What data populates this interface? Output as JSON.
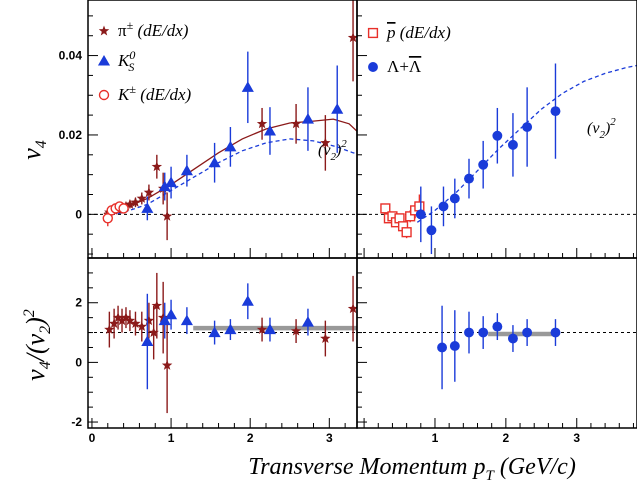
{
  "chart_data": {
    "type": "scatter",
    "x_axis": {
      "label": "Transverse Momentum p_T (GeV/c)",
      "label_main": "Transverse Momentum p",
      "label_sub": "T",
      "label_tail": " (GeV/c)",
      "left_range": [
        -0.05,
        3.35
      ],
      "right_range": [
        -0.1,
        3.85
      ],
      "ticks_left": [
        "0",
        "1",
        "2",
        "3"
      ],
      "ticks_right": [
        "1",
        "2",
        "3"
      ]
    },
    "panels": [
      {
        "id": "top-left",
        "ylabel": "v_4",
        "ylabel_main": "v",
        "ylabel_sub": "4",
        "ylim": [
          -0.011,
          0.054
        ],
        "yticks": [
          0,
          0.02,
          0.04
        ],
        "ytick_labels": [
          "0",
          "0.02",
          "0.04"
        ],
        "annotation": "(v2)2",
        "annotation_parts": [
          "(v",
          "2",
          ")",
          "2"
        ],
        "series": [
          {
            "name": "π± (dE/dx)",
            "marker": "star",
            "color": "#8b1a1a",
            "points": [
              [
                0.22,
                0.0005,
                0.0008
              ],
              [
                0.28,
                0.001,
                0.0008
              ],
              [
                0.33,
                0.0012,
                0.0008
              ],
              [
                0.38,
                0.0015,
                0.0009
              ],
              [
                0.43,
                0.002,
                0.0009
              ],
              [
                0.48,
                0.0025,
                0.001
              ],
              [
                0.55,
                0.003,
                0.0012
              ],
              [
                0.63,
                0.004,
                0.0015
              ],
              [
                0.72,
                0.0055,
                0.002
              ],
              [
                0.82,
                0.012,
                0.003
              ],
              [
                0.9,
                0.0065,
                0.004
              ],
              [
                0.95,
                -0.0005,
                0.006
              ],
              [
                2.15,
                0.0228,
                0.004
              ],
              [
                2.58,
                0.0228,
                0.005
              ],
              [
                2.95,
                0.018,
                0.007
              ],
              [
                3.3,
                0.0445,
                0.011
              ]
            ]
          },
          {
            "name": "K0S",
            "marker": "triangle",
            "color": "#1a3bd9",
            "points": [
              [
                0.7,
                0.0015,
                0.003
              ],
              [
                0.92,
                0.007,
                0.0035
              ],
              [
                1.0,
                0.008,
                0.004
              ],
              [
                1.2,
                0.011,
                0.004
              ],
              [
                1.55,
                0.013,
                0.005
              ],
              [
                1.75,
                0.017,
                0.005
              ],
              [
                1.97,
                0.032,
                0.009
              ],
              [
                2.25,
                0.021,
                0.006
              ],
              [
                2.73,
                0.024,
                0.008
              ],
              [
                3.1,
                0.0265,
                0.011
              ]
            ]
          },
          {
            "name": "K± (dE/dx)",
            "marker": "open-circle",
            "color": "#e8302a",
            "points": [
              [
                0.2,
                -0.001,
                0.002
              ],
              [
                0.25,
                0.001,
                0.001
              ],
              [
                0.3,
                0.0015,
                0.001
              ],
              [
                0.35,
                0.002,
                0.001
              ],
              [
                0.4,
                0.0015,
                0.0012
              ]
            ]
          }
        ],
        "curves": [
          {
            "name": "(v2)2 (π, K)",
            "color": "#8b1a1a",
            "style": "solid",
            "points": [
              [
                0.15,
                0.0002
              ],
              [
                0.4,
                0.0015
              ],
              [
                0.7,
                0.004
              ],
              [
                1.0,
                0.0075
              ],
              [
                1.3,
                0.0115
              ],
              [
                1.6,
                0.0155
              ],
              [
                1.9,
                0.019
              ],
              [
                2.2,
                0.0215
              ],
              [
                2.5,
                0.023
              ],
              [
                2.8,
                0.0235
              ],
              [
                3.05,
                0.024
              ],
              [
                3.25,
                0.0228
              ],
              [
                3.4,
                0.02
              ],
              [
                3.55,
                0.017
              ]
            ]
          },
          {
            "name": "(v2)2 (K0S)",
            "color": "#1a3bd9",
            "style": "dashed",
            "points": [
              [
                0.15,
                -0.0005
              ],
              [
                0.4,
                0.0005
              ],
              [
                0.7,
                0.0025
              ],
              [
                1.0,
                0.006
              ],
              [
                1.3,
                0.0095
              ],
              [
                1.6,
                0.013
              ],
              [
                1.9,
                0.016
              ],
              [
                2.2,
                0.018
              ],
              [
                2.5,
                0.019
              ],
              [
                2.8,
                0.0185
              ],
              [
                3.1,
                0.017
              ],
              [
                3.3,
                0.0155
              ],
              [
                3.5,
                0.0145
              ]
            ]
          }
        ]
      },
      {
        "id": "top-right",
        "ylim": [
          -0.011,
          0.054
        ],
        "yticks": [
          0,
          0.02,
          0.04
        ],
        "annotation": "(v2)2",
        "annotation_parts": [
          "(v",
          "2",
          ")",
          "2"
        ],
        "series": [
          {
            "name": "p̄ (dE/dx)",
            "marker": "open-square",
            "color": "#e8302a",
            "points": [
              [
                0.3,
                0.0015,
                0.001
              ],
              [
                0.35,
                -0.001,
                0.001
              ],
              [
                0.4,
                -0.0005,
                0.001
              ],
              [
                0.45,
                -0.002,
                0.0012
              ],
              [
                0.5,
                -0.001,
                0.0012
              ],
              [
                0.55,
                -0.003,
                0.0013
              ],
              [
                0.6,
                -0.0045,
                0.0015
              ],
              [
                0.65,
                -0.0005,
                0.0015
              ],
              [
                0.72,
                0.001,
                0.002
              ],
              [
                0.78,
                0.002,
                0.003
              ]
            ]
          },
          {
            "name": "Λ+Λ̄",
            "marker": "filled-circle",
            "color": "#1a3bd9",
            "points": [
              [
                0.8,
                0.0,
                0.007
              ],
              [
                0.95,
                -0.004,
                0.006
              ],
              [
                1.12,
                0.002,
                0.005
              ],
              [
                1.28,
                0.004,
                0.005
              ],
              [
                1.48,
                0.009,
                0.005
              ],
              [
                1.68,
                0.0125,
                0.006
              ],
              [
                1.88,
                0.0198,
                0.007
              ],
              [
                2.1,
                0.0175,
                0.008
              ],
              [
                2.3,
                0.022,
                0.01
              ],
              [
                2.7,
                0.026,
                0.012
              ]
            ]
          }
        ],
        "curves": [
          {
            "name": "(v2)2 (Λ+Λ̄)",
            "color": "#1a3bd9",
            "style": "dashed",
            "points": [
              [
                0.75,
                -0.002
              ],
              [
                1.0,
                0.001
              ],
              [
                1.3,
                0.0055
              ],
              [
                1.6,
                0.011
              ],
              [
                1.9,
                0.0165
              ],
              [
                2.2,
                0.0215
              ],
              [
                2.5,
                0.0265
              ],
              [
                2.8,
                0.0305
              ],
              [
                3.1,
                0.0335
              ],
              [
                3.4,
                0.0355
              ],
              [
                3.7,
                0.037
              ],
              [
                3.85,
                0.0375
              ]
            ]
          }
        ]
      },
      {
        "id": "bottom-left",
        "ylabel": "v_4/(v_2)^2",
        "ylabel_parts": [
          "v",
          "4",
          "/(v",
          "2",
          ")",
          "2"
        ],
        "ylim": [
          -2.2,
          3.5
        ],
        "yticks": [
          -2,
          0,
          2
        ],
        "ytick_labels": [
          "-2",
          "0",
          "2"
        ],
        "reference_line": 1,
        "band": {
          "x": [
            1.28,
            3.48
          ],
          "y": 1.15
        },
        "series": [
          {
            "name": "π± (dE/dx)",
            "marker": "star",
            "color": "#8b1a1a",
            "points": [
              [
                0.22,
                1.1,
                0.6
              ],
              [
                0.28,
                1.3,
                0.5
              ],
              [
                0.33,
                1.5,
                0.4
              ],
              [
                0.38,
                1.4,
                0.4
              ],
              [
                0.43,
                1.5,
                0.35
              ],
              [
                0.48,
                1.4,
                0.35
              ],
              [
                0.55,
                1.3,
                0.4
              ],
              [
                0.63,
                1.2,
                0.5
              ],
              [
                0.72,
                1.4,
                0.6
              ],
              [
                0.78,
                1.0,
                0.9
              ],
              [
                0.82,
                1.9,
                1.1
              ],
              [
                0.9,
                1.5,
                1.2
              ],
              [
                0.95,
                -0.1,
                1.6
              ],
              [
                2.15,
                1.1,
                0.4
              ],
              [
                2.58,
                1.05,
                0.4
              ],
              [
                2.95,
                0.8,
                0.6
              ],
              [
                3.3,
                1.8,
                1.1
              ]
            ]
          },
          {
            "name": "K0S",
            "marker": "triangle",
            "color": "#1a3bd9",
            "points": [
              [
                0.7,
                0.7,
                1.6
              ],
              [
                0.92,
                1.4,
                0.6
              ],
              [
                1.0,
                1.6,
                0.5
              ],
              [
                1.2,
                1.4,
                0.45
              ],
              [
                1.55,
                1.0,
                0.4
              ],
              [
                1.75,
                1.1,
                0.35
              ],
              [
                1.97,
                2.05,
                0.6
              ],
              [
                2.25,
                1.1,
                0.4
              ],
              [
                2.73,
                1.35,
                0.45
              ]
            ]
          }
        ]
      },
      {
        "id": "bottom-right",
        "ylim": [
          -2.2,
          3.5
        ],
        "yticks": [
          -2,
          0,
          2
        ],
        "reference_line": 1,
        "band": {
          "x": [
            1.75,
            2.75
          ],
          "y": 0.95
        },
        "series": [
          {
            "name": "Λ+Λ̄",
            "marker": "filled-circle",
            "color": "#1a3bd9",
            "points": [
              [
                1.1,
                0.5,
                1.4
              ],
              [
                1.28,
                0.55,
                1.2
              ],
              [
                1.48,
                1.0,
                0.7
              ],
              [
                1.68,
                1.0,
                0.55
              ],
              [
                1.88,
                1.2,
                0.45
              ],
              [
                2.1,
                0.8,
                0.45
              ],
              [
                2.3,
                1.0,
                0.45
              ],
              [
                2.7,
                1.0,
                0.45
              ]
            ]
          }
        ]
      }
    ],
    "legend_left": [
      {
        "marker": "star",
        "color": "#8b1a1a",
        "base": "π",
        "sup": "±",
        "tail": " (dE/dx)"
      },
      {
        "marker": "triangle",
        "color": "#1a3bd9",
        "base": "K",
        "sup": "0",
        "sub": "S",
        "tail": ""
      },
      {
        "marker": "open-circle",
        "color": "#e8302a",
        "base": "K",
        "sup": "±",
        "tail": " (dE/dx)"
      }
    ],
    "legend_right": [
      {
        "marker": "open-square",
        "color": "#e8302a",
        "base": "p",
        "overline": true,
        "tail": " (dE/dx)"
      },
      {
        "marker": "filled-circle",
        "color": "#1a3bd9",
        "base": "Λ+",
        "base2": "Λ",
        "overline2": true,
        "tail": ""
      }
    ],
    "colors": {
      "pion": "#8b1a1a",
      "k0s": "#1a3bd9",
      "kaon": "#e8302a",
      "proton": "#e8302a",
      "lambda": "#1a3bd9",
      "band": "#999999"
    }
  }
}
